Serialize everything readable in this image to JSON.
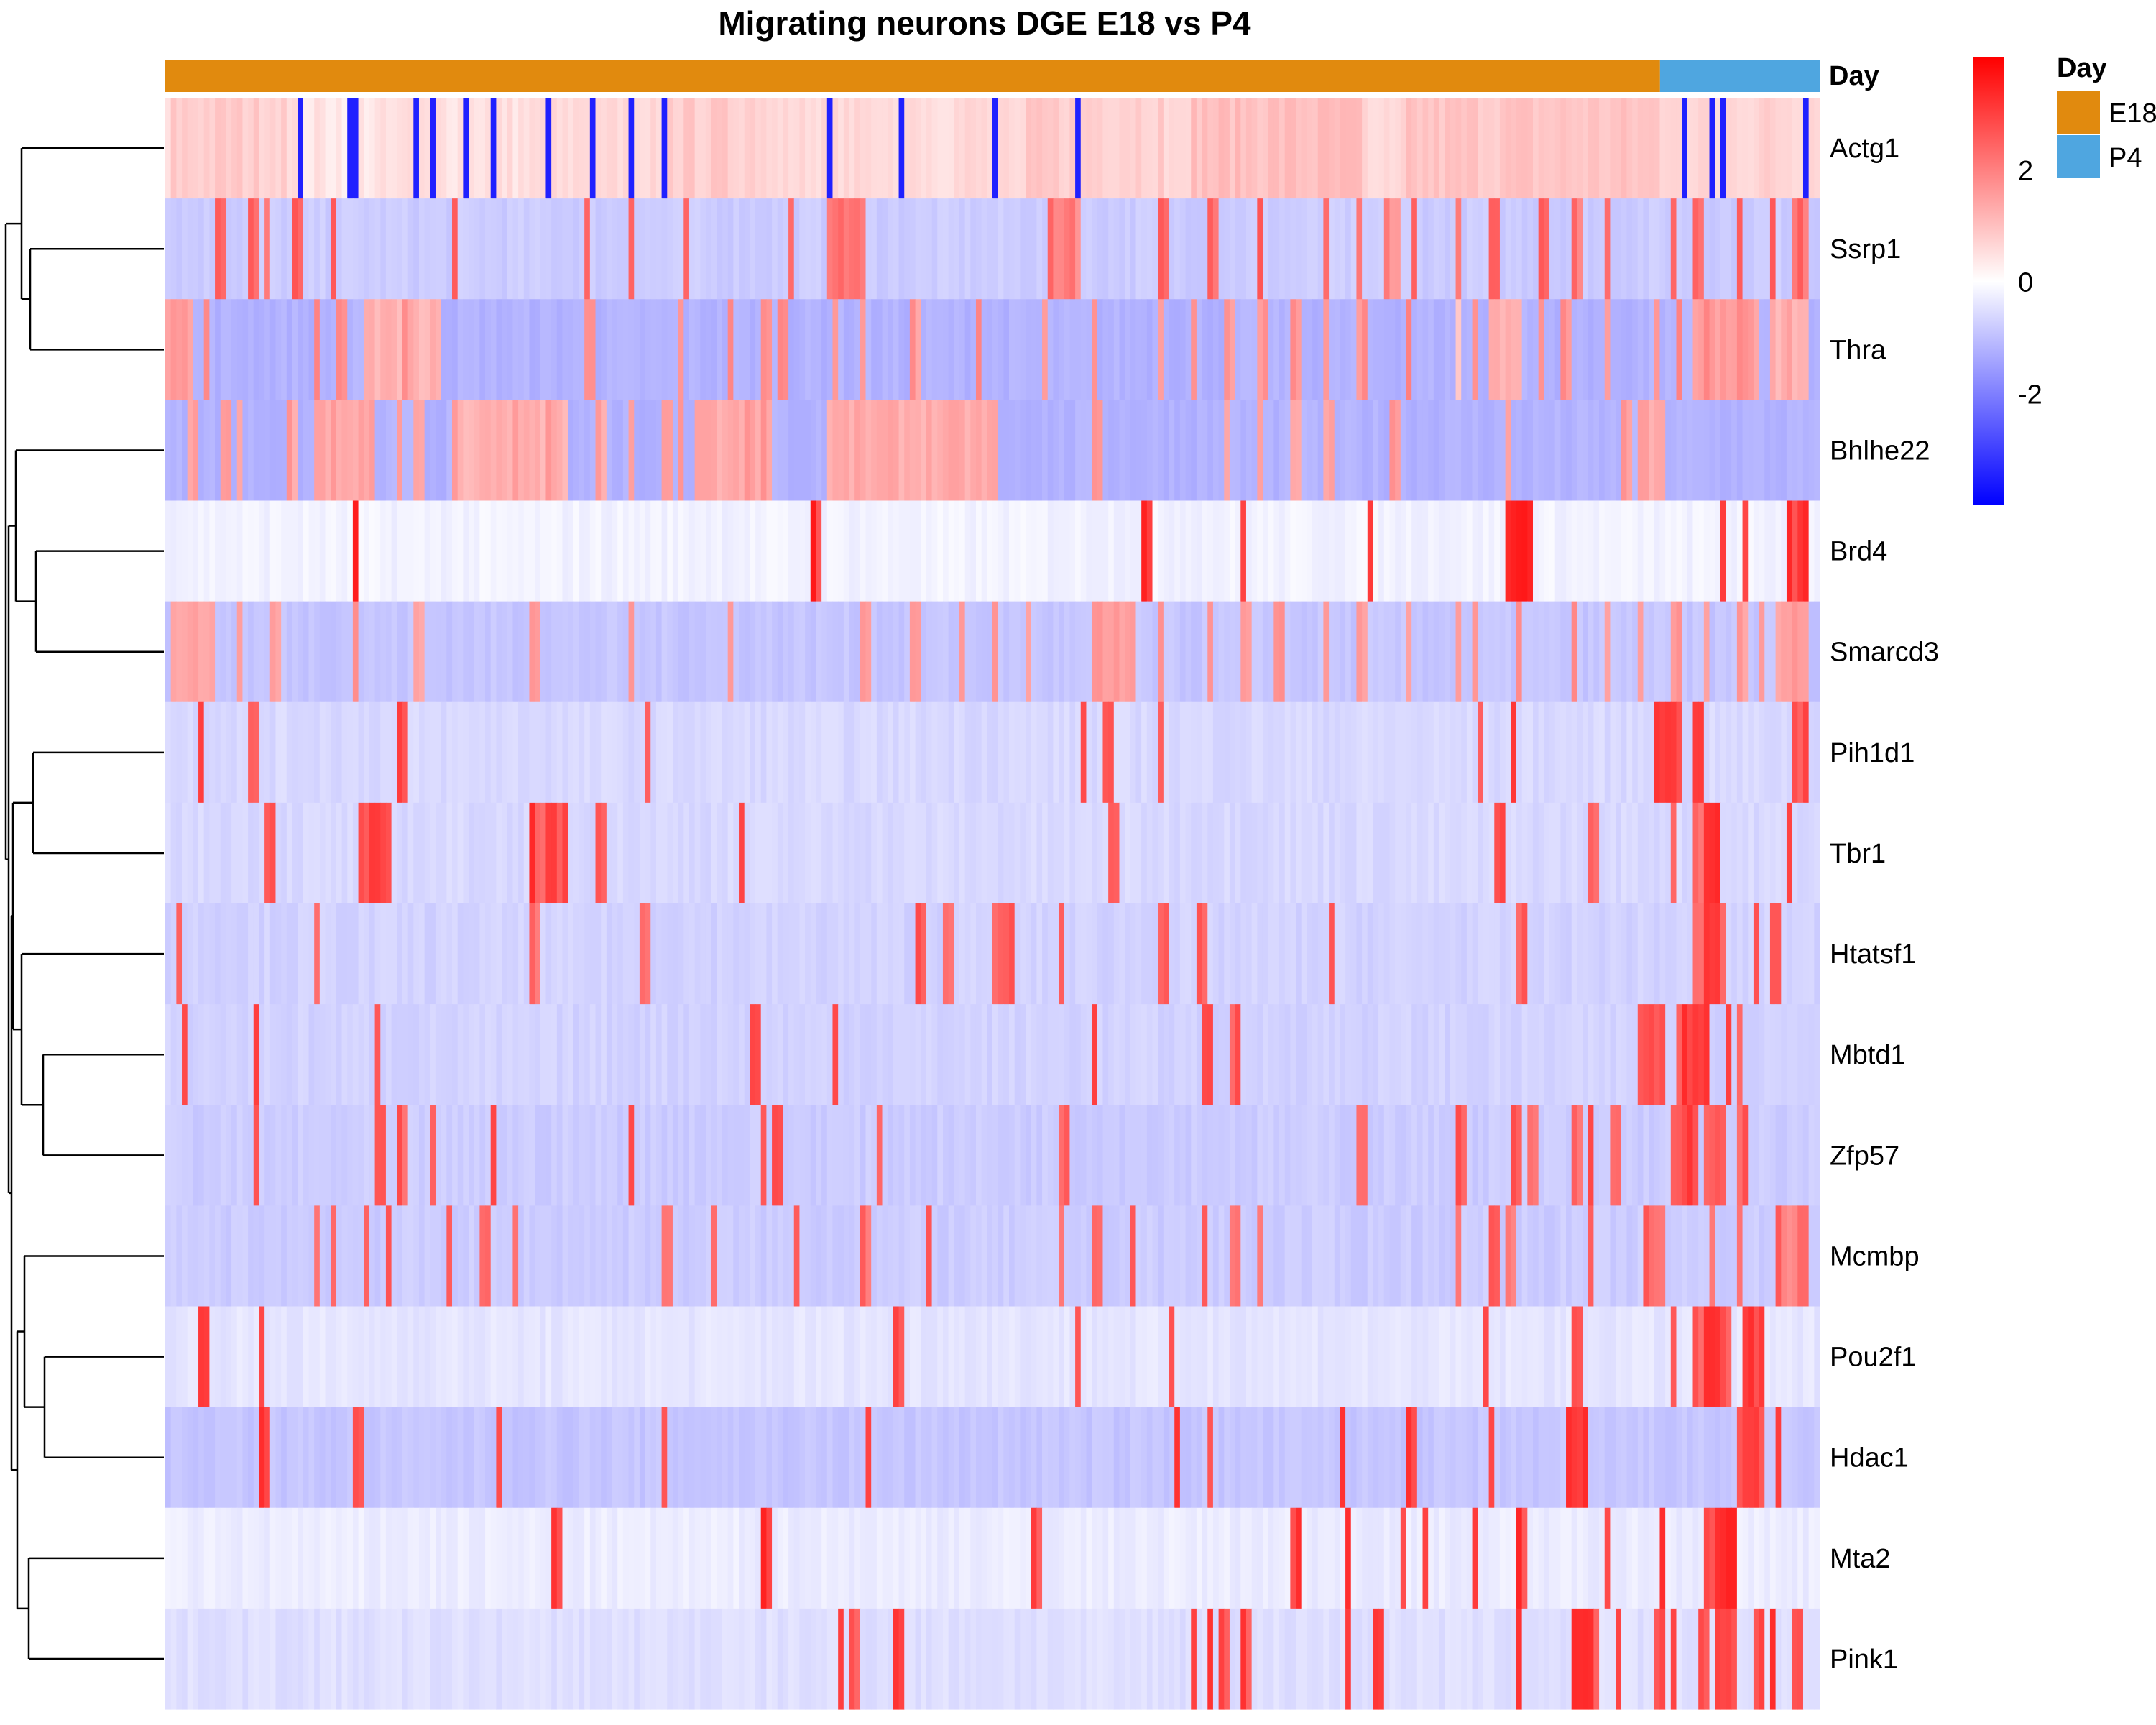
{
  "chart_data": {
    "type": "heatmap",
    "title": "Migrating neurons DGE E18 vs P4",
    "annotation": {
      "name": "Day",
      "groups": [
        {
          "label": "E18",
          "color": "#E18A0E"
        },
        {
          "label": "P4",
          "color": "#4FA6E0"
        }
      ],
      "group_fractions": {
        "E18": 0.9035,
        "P4": 0.0965
      }
    },
    "legend": {
      "title": "Day",
      "color_ticks": [
        "2",
        "0",
        "-2"
      ],
      "color_tick_values": [
        2,
        0,
        -2
      ],
      "value_range": [
        -4,
        4
      ],
      "colors": {
        "low": "#0000FF",
        "mid": "#FFFFFF",
        "high": "#FF0000"
      }
    },
    "n_cells": 300,
    "rows": [
      {
        "gene": "Actg1",
        "base": 0.6,
        "low": -3.5,
        "spans": [
          [
            0.006,
            0.07,
            0.8
          ],
          [
            0.08,
            0.14,
            0.4
          ],
          [
            0.16,
            0.26,
            0.5
          ],
          [
            0.3,
            0.36,
            0.8
          ],
          [
            0.46,
            0.5,
            0.6
          ],
          [
            0.52,
            0.6,
            0.8
          ],
          [
            0.62,
            0.72,
            1.0
          ],
          [
            0.75,
            0.9,
            0.9
          ],
          [
            0.95,
            0.99,
            0.7
          ]
        ],
        "neg": [
          0.083,
          0.11,
          0.114,
          0.153,
          0.163,
          0.183,
          0.198,
          0.233,
          0.258,
          0.28,
          0.3,
          0.4,
          0.446,
          0.5,
          0.55,
          0.918,
          0.935,
          0.94,
          0.99
        ]
      },
      {
        "gene": "Ssrp1",
        "base": -0.8,
        "spans": [
          [
            0.4,
            0.42,
            2.2
          ],
          [
            0.535,
            0.55,
            1.8
          ],
          [
            0.74,
            0.745,
            1.6
          ],
          [
            0.985,
            0.99,
            2.0
          ]
        ],
        "high": 2.6,
        "pos": [
          0.03,
          0.05,
          0.063,
          0.079,
          0.1,
          0.175,
          0.255,
          0.28,
          0.315,
          0.378,
          0.41,
          0.536,
          0.544,
          0.6,
          0.633,
          0.66,
          0.7,
          0.72,
          0.738,
          0.755,
          0.78,
          0.8,
          0.83,
          0.85,
          0.87,
          0.91,
          0.925,
          0.95,
          0.97,
          0.985
        ]
      },
      {
        "gene": "Thra",
        "base": -1.2,
        "spans": [
          [
            0.0,
            0.015,
            1.5
          ],
          [
            0.12,
            0.165,
            1.2
          ],
          [
            0.78,
            0.78,
            1.0
          ],
          [
            0.8,
            0.82,
            1.3
          ],
          [
            0.925,
            0.96,
            1.5
          ],
          [
            0.97,
            0.99,
            1.2
          ]
        ],
        "high": 1.9,
        "pos": [
          0.025,
          0.09,
          0.105,
          0.145,
          0.255,
          0.31,
          0.34,
          0.36,
          0.36,
          0.37,
          0.37,
          0.405,
          0.42,
          0.45,
          0.49,
          0.53,
          0.56,
          0.6,
          0.62,
          0.64,
          0.66,
          0.68,
          0.7,
          0.72,
          0.75,
          0.79,
          0.83,
          0.845,
          0.87,
          0.9,
          0.915,
          0.93,
          0.95,
          0.98
        ]
      },
      {
        "gene": "Bhlhe22",
        "base": -1.2,
        "spans": [
          [
            0.09,
            0.125,
            1.4
          ],
          [
            0.175,
            0.24,
            1.2
          ],
          [
            0.32,
            0.36,
            1.3
          ],
          [
            0.4,
            0.45,
            1.5
          ],
          [
            0.5,
            0.5,
            0.0
          ],
          [
            0.4,
            0.42,
            1.4
          ],
          [
            0.405,
            0.5,
            1.3
          ]
        ],
        "high": 1.7,
        "pos": [
          0.015,
          0.035,
          0.045,
          0.075,
          0.09,
          0.1,
          0.14,
          0.15,
          0.175,
          0.21,
          0.23,
          0.26,
          0.28,
          0.3,
          0.31,
          0.35,
          0.355,
          0.36,
          0.56,
          0.64,
          0.66,
          0.68,
          0.7,
          0.74,
          0.81,
          0.88,
          0.9,
          0.89,
          0.895
        ]
      },
      {
        "gene": "Brd4",
        "base": -0.2,
        "spans": [
          [
            0.81,
            0.825,
            3.5
          ],
          [
            0.98,
            0.99,
            3.2
          ]
        ],
        "high": 3.6,
        "pos": [
          0.115,
          0.39,
          0.592,
          0.65,
          0.728,
          0.823,
          0.943,
          0.955,
          0.98
        ]
      },
      {
        "gene": "Smarcd3",
        "base": -0.9,
        "spans": [
          [
            0.005,
            0.028,
            1.4
          ],
          [
            0.57,
            0.585,
            1.6
          ],
          [
            0.975,
            0.99,
            1.5
          ]
        ],
        "high": 1.8,
        "pos": [
          0.045,
          0.065,
          0.115,
          0.15,
          0.22,
          0.28,
          0.34,
          0.42,
          0.45,
          0.48,
          0.5,
          0.52,
          0.56,
          0.565,
          0.6,
          0.63,
          0.65,
          0.67,
          0.7,
          0.72,
          0.75,
          0.78,
          0.79,
          0.82,
          0.85,
          0.87,
          0.89,
          0.91,
          0.93,
          0.95,
          0.965
        ]
      },
      {
        "gene": "Pih1d1",
        "base": -0.6,
        "spans": [
          [
            0.9,
            0.912,
            3.2
          ],
          [
            0.985,
            0.99,
            2.8
          ]
        ],
        "high": 3.1,
        "pos": [
          0.02,
          0.05,
          0.14,
          0.29,
          0.555,
          0.57,
          0.6,
          0.795,
          0.815,
          0.91,
          0.925,
          0.985
        ]
      },
      {
        "gene": "Tbr1",
        "base": -0.6,
        "spans": [
          [
            0.118,
            0.136,
            3.0
          ],
          [
            0.223,
            0.24,
            3.2
          ],
          [
            0.93,
            0.938,
            3.3
          ]
        ],
        "high": 3.0,
        "pos": [
          0.063,
          0.117,
          0.122,
          0.13,
          0.224,
          0.232,
          0.238,
          0.261,
          0.349,
          0.571,
          0.805,
          0.86,
          0.91,
          0.925,
          0.98
        ]
      },
      {
        "gene": "Htatsf1",
        "base": -0.7,
        "spans": [
          [
            0.93,
            0.94,
            3.2
          ]
        ],
        "high": 2.8,
        "pos": [
          0.008,
          0.092,
          0.223,
          0.288,
          0.455,
          0.47,
          0.5,
          0.505,
          0.508,
          0.54,
          0.6,
          0.626,
          0.705,
          0.82,
          0.925,
          0.94,
          0.96,
          0.97,
          0.973
        ]
      },
      {
        "gene": "Mbtd1",
        "base": -0.7,
        "spans": [
          [
            0.892,
            0.905,
            2.9
          ],
          [
            0.915,
            0.93,
            3.2
          ]
        ],
        "high": 2.9,
        "pos": [
          0.013,
          0.056,
          0.127,
          0.356,
          0.405,
          0.56,
          0.628,
          0.645,
          0.892,
          0.9,
          0.915,
          0.923,
          0.945,
          0.953
        ]
      },
      {
        "gene": "Zfp57",
        "base": -0.8,
        "spans": [
          [
            0.91,
            0.92,
            3.0
          ],
          [
            0.93,
            0.94,
            2.6
          ]
        ],
        "high": 2.8,
        "pos": [
          0.056,
          0.127,
          0.143,
          0.163,
          0.197,
          0.28,
          0.36,
          0.367,
          0.43,
          0.541,
          0.542,
          0.54,
          0.72,
          0.78,
          0.815,
          0.825,
          0.85,
          0.862,
          0.875,
          0.91,
          0.925,
          0.95
        ]
      },
      {
        "gene": "Mcmbp",
        "base": -0.8,
        "spans": [
          [
            0.895,
            0.905,
            2.0
          ],
          [
            0.975,
            0.985,
            1.9
          ]
        ],
        "high": 2.6,
        "pos": [
          0.092,
          0.103,
          0.12,
          0.134,
          0.17,
          0.19,
          0.21,
          0.3,
          0.33,
          0.38,
          0.42,
          0.46,
          0.54,
          0.56,
          0.585,
          0.628,
          0.644,
          0.66,
          0.78,
          0.8,
          0.81,
          0.86,
          0.895,
          0.935,
          0.95,
          0.975,
          0.988
        ]
      },
      {
        "gene": "Pou2f1",
        "base": -0.4,
        "spans": [
          [
            0.925,
            0.945,
            3.3
          ],
          [
            0.955,
            0.965,
            3.1
          ]
        ],
        "high": 3.2,
        "pos": [
          0.023,
          0.057,
          0.44,
          0.552,
          0.607,
          0.797,
          0.852,
          0.91,
          0.925,
          0.94,
          0.957
        ]
      },
      {
        "gene": "Hdac1",
        "base": -0.9,
        "spans": [
          [
            0.848,
            0.858,
            3.2
          ],
          [
            0.95,
            0.96,
            3.0
          ]
        ],
        "high": 3.2,
        "pos": [
          0.057,
          0.115,
          0.202,
          0.3,
          0.425,
          0.61,
          0.63,
          0.71,
          0.75,
          0.8,
          0.852,
          0.95,
          0.96,
          0.975
        ]
      },
      {
        "gene": "Mta2",
        "base": -0.3,
        "spans": [
          [
            0.93,
            0.948,
            3.4
          ]
        ],
        "high": 3.4,
        "pos": [
          0.236,
          0.363,
          0.524,
          0.682,
          0.682,
          0.715,
          0.748,
          0.76,
          0.817,
          0.817,
          0.79,
          0.872,
          0.904,
          0.93,
          0.942
        ]
      },
      {
        "gene": "Pink1",
        "base": -0.5,
        "spans": [
          [
            0.85,
            0.86,
            3.4
          ],
          [
            0.937,
            0.947,
            2.9
          ]
        ],
        "high": 3.3,
        "pos": [
          0.41,
          0.44,
          0.415,
          0.445,
          0.62,
          0.632,
          0.637,
          0.65,
          0.715,
          0.73,
          0.817,
          0.86,
          0.877,
          0.9,
          0.91,
          0.928,
          0.96,
          0.97,
          0.985
        ]
      }
    ]
  }
}
